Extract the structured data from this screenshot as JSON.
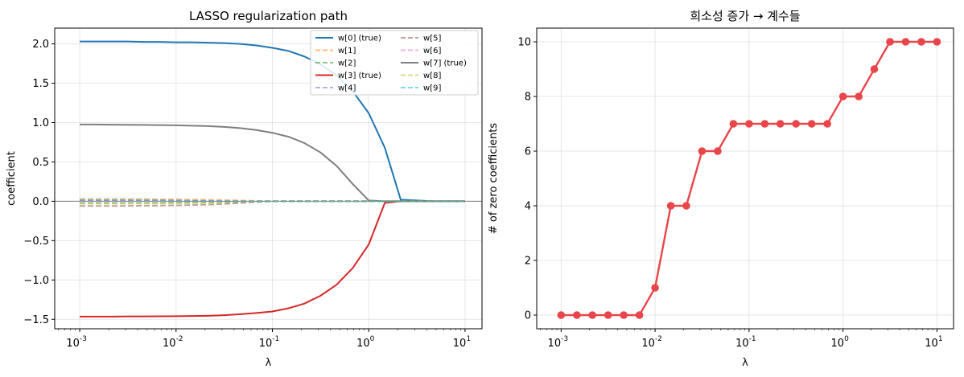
{
  "chart_data": [
    {
      "type": "line",
      "title": "LASSO regularization path",
      "xlabel": "λ",
      "ylabel": "coefficient",
      "xscale": "log",
      "xlim": [
        0.00055,
        15
      ],
      "ylim": [
        -1.62,
        2.2
      ],
      "xtick_exponents": [
        "-3",
        "-2",
        "-1",
        "0",
        "1"
      ],
      "xtick_base": "10",
      "yticks": [
        "−1.5",
        "−1.0",
        "−0.5",
        "0.0",
        "0.5",
        "1.0",
        "1.5",
        "2.0"
      ],
      "ytick_values": [
        -1.5,
        -1.0,
        -0.5,
        0.0,
        0.5,
        1.0,
        1.5,
        2.0
      ],
      "grid": true,
      "zero_line": true,
      "legend_position": "top-right",
      "x": [
        0.001,
        0.00147,
        0.00215,
        0.00316,
        0.00464,
        0.00681,
        0.01,
        0.0147,
        0.0215,
        0.0316,
        0.0464,
        0.0681,
        0.1,
        0.147,
        0.215,
        0.316,
        0.464,
        0.681,
        1.0,
        1.47,
        2.15,
        3.16,
        4.64,
        6.81,
        10.0
      ],
      "series": [
        {
          "name": "w[0] (true)",
          "color": "#1f77b4",
          "style": "solid",
          "values": [
            2.03,
            2.03,
            2.03,
            2.03,
            2.025,
            2.025,
            2.02,
            2.02,
            2.015,
            2.01,
            2.0,
            1.98,
            1.95,
            1.91,
            1.84,
            1.74,
            1.6,
            1.4,
            1.12,
            0.68,
            0.02,
            0.01,
            0.0,
            0.0,
            0.0
          ]
        },
        {
          "name": "w[1]",
          "color": "#ff7f0e",
          "style": "dashed",
          "values": [
            0.03,
            0.03,
            0.03,
            0.03,
            0.03,
            0.025,
            0.025,
            0.02,
            0.02,
            0.015,
            0.01,
            0.005,
            0.0,
            0.0,
            0.0,
            0.0,
            0.0,
            0.0,
            0.0,
            0.0,
            0.0,
            0.0,
            0.0,
            0.0,
            0.0
          ]
        },
        {
          "name": "w[2]",
          "color": "#2ca02c",
          "style": "dashed",
          "values": [
            -0.02,
            -0.02,
            -0.02,
            -0.02,
            -0.02,
            -0.02,
            -0.015,
            -0.015,
            -0.01,
            -0.01,
            -0.005,
            0.0,
            0.0,
            0.0,
            0.0,
            0.0,
            0.0,
            0.0,
            0.0,
            0.0,
            0.0,
            0.0,
            0.0,
            0.0,
            0.0
          ]
        },
        {
          "name": "w[3] (true)",
          "color": "#d62728",
          "style": "solid",
          "values": [
            -1.465,
            -1.465,
            -1.465,
            -1.463,
            -1.463,
            -1.462,
            -1.46,
            -1.458,
            -1.455,
            -1.448,
            -1.435,
            -1.42,
            -1.4,
            -1.36,
            -1.3,
            -1.2,
            -1.06,
            -0.85,
            -0.55,
            -0.02,
            0.0,
            0.0,
            0.0,
            0.0,
            0.0
          ]
        },
        {
          "name": "w[4]",
          "color": "#9467bd",
          "style": "dashed",
          "values": [
            0.01,
            0.01,
            0.01,
            0.01,
            0.01,
            0.01,
            0.008,
            0.005,
            0.003,
            0.0,
            0.0,
            0.0,
            0.0,
            0.0,
            0.0,
            0.0,
            0.0,
            0.0,
            0.0,
            0.0,
            0.0,
            0.0,
            0.0,
            0.0,
            0.0
          ]
        },
        {
          "name": "w[5]",
          "color": "#8c564b",
          "style": "dashed",
          "values": [
            -0.06,
            -0.06,
            -0.06,
            -0.058,
            -0.056,
            -0.055,
            -0.052,
            -0.048,
            -0.042,
            -0.034,
            -0.022,
            -0.01,
            0.0,
            0.0,
            0.0,
            0.0,
            0.0,
            0.0,
            0.0,
            0.0,
            0.0,
            0.0,
            0.0,
            0.0,
            0.0
          ]
        },
        {
          "name": "w[6]",
          "color": "#e377c2",
          "style": "dashed",
          "values": [
            0.005,
            0.005,
            0.005,
            0.005,
            0.005,
            0.005,
            0.004,
            0.003,
            0.002,
            0.0,
            0.0,
            0.0,
            0.0,
            0.0,
            0.0,
            0.0,
            0.0,
            0.0,
            0.0,
            0.0,
            0.0,
            0.0,
            0.0,
            0.0,
            0.0
          ]
        },
        {
          "name": "w[7] (true)",
          "color": "#7f7f7f",
          "style": "solid",
          "values": [
            0.975,
            0.975,
            0.973,
            0.972,
            0.97,
            0.968,
            0.965,
            0.96,
            0.955,
            0.945,
            0.93,
            0.905,
            0.87,
            0.82,
            0.74,
            0.62,
            0.45,
            0.22,
            0.01,
            0.0,
            0.0,
            0.0,
            0.0,
            0.0,
            0.0
          ]
        },
        {
          "name": "w[8]",
          "color": "#bcbd22",
          "style": "dashed",
          "values": [
            -0.03,
            -0.03,
            -0.03,
            -0.03,
            -0.028,
            -0.027,
            -0.025,
            -0.022,
            -0.018,
            -0.013,
            -0.007,
            0.0,
            0.0,
            0.0,
            0.0,
            0.0,
            0.0,
            0.0,
            0.0,
            0.0,
            0.0,
            0.0,
            0.0,
            0.0,
            0.0
          ]
        },
        {
          "name": "w[9]",
          "color": "#17becf",
          "style": "dashed",
          "values": [
            0.015,
            0.015,
            0.015,
            0.015,
            0.013,
            0.012,
            0.01,
            0.008,
            0.005,
            0.002,
            0.0,
            0.0,
            0.0,
            0.0,
            0.0,
            0.0,
            0.0,
            0.0,
            0.0,
            0.0,
            0.0,
            0.0,
            0.0,
            0.0,
            0.0
          ]
        }
      ]
    },
    {
      "type": "line",
      "title": "희소성 증가 → 계수들",
      "xlabel": "λ",
      "ylabel": "# of zero coefficients",
      "xscale": "log",
      "xlim": [
        0.00055,
        15
      ],
      "ylim": [
        -0.5,
        10.5
      ],
      "xtick_exponents": [
        "-3",
        "-2",
        "-1",
        "0",
        "1"
      ],
      "xtick_base": "10",
      "yticks": [
        "0",
        "2",
        "4",
        "6",
        "8",
        "10"
      ],
      "ytick_values": [
        0,
        2,
        4,
        6,
        8,
        10
      ],
      "grid": true,
      "markers": true,
      "color": "#e8464a",
      "x": [
        0.001,
        0.00147,
        0.00215,
        0.00316,
        0.00464,
        0.00681,
        0.01,
        0.0147,
        0.0215,
        0.0316,
        0.0464,
        0.0681,
        0.1,
        0.147,
        0.215,
        0.316,
        0.464,
        0.681,
        1.0,
        1.47,
        2.15,
        3.16,
        4.64,
        6.81,
        10.0
      ],
      "values": [
        0,
        0,
        0,
        0,
        0,
        0,
        1,
        4,
        4,
        6,
        6,
        7,
        7,
        7,
        7,
        7,
        7,
        7,
        8,
        8,
        9,
        10,
        10,
        10,
        10
      ]
    }
  ]
}
